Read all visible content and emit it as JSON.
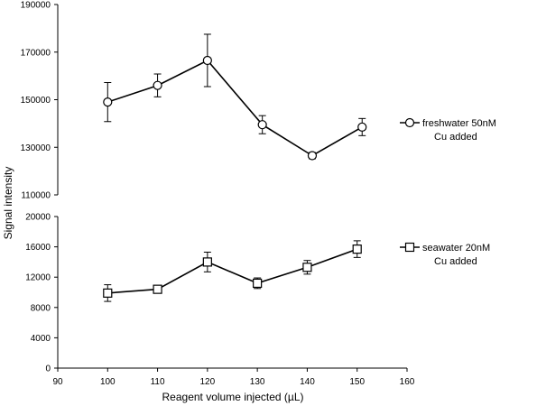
{
  "chart_data": [
    {
      "type": "line",
      "x_axis_visible": false,
      "xlim": [
        90,
        160
      ],
      "ylim": [
        110000,
        190000
      ],
      "yticks": [
        "110000",
        "130000",
        "150000",
        "170000",
        "190000"
      ],
      "series": [
        {
          "name": "freshwater 50nM Cu added",
          "marker": "circle",
          "x": [
            100,
            110,
            120,
            131,
            141,
            151
          ],
          "y": [
            149000,
            156000,
            166500,
            139500,
            126500,
            138500
          ],
          "err": [
            8200,
            4800,
            11000,
            3800,
            1300,
            3600
          ]
        }
      ],
      "legend": {
        "placement": "right",
        "lines": [
          "freshwater 50nM",
          "Cu added"
        ]
      }
    },
    {
      "type": "line",
      "xlim": [
        90,
        160
      ],
      "ylim": [
        0,
        20000
      ],
      "xticks": [
        "90",
        "100",
        "110",
        "120",
        "130",
        "140",
        "150",
        "160"
      ],
      "yticks": [
        "0",
        "4000",
        "8000",
        "12000",
        "16000",
        "20000"
      ],
      "series": [
        {
          "name": "seawater 20nM Cu added",
          "marker": "square",
          "x": [
            100,
            110,
            120,
            130,
            140,
            150
          ],
          "y": [
            9900,
            10400,
            14000,
            11200,
            13300,
            15700
          ],
          "err": [
            1100,
            400,
            1300,
            700,
            900,
            1100
          ]
        }
      ],
      "legend": {
        "placement": "right",
        "lines": [
          "seawater 20nM",
          "Cu added"
        ]
      }
    }
  ],
  "shared": {
    "xlabel": "Reagent volume injected (µL)",
    "ylabel": "Signal intensity"
  },
  "colors": {
    "line": "#000000",
    "background": "#ffffff"
  }
}
